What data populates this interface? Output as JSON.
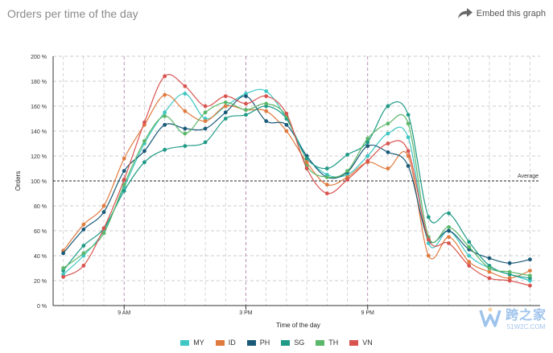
{
  "header": {
    "title": "Orders per time of the day",
    "embed_label": "Embed this graph",
    "embed_icon": "share-arrow-icon"
  },
  "chart_data": {
    "type": "line",
    "title": "Orders per time of the day",
    "xlabel": "Time of the day",
    "ylabel": "Orders",
    "x": [
      6,
      7,
      8,
      9,
      10,
      11,
      12,
      13,
      14,
      15,
      16,
      17,
      18,
      19,
      20,
      21,
      22,
      23,
      24,
      25,
      26,
      27,
      28,
      29
    ],
    "xlim": [
      5.5,
      29.5
    ],
    "x_ticks": [
      {
        "value": 9,
        "label": "9 AM"
      },
      {
        "value": 15,
        "label": "3 PM"
      },
      {
        "value": 21,
        "label": "9 PM"
      }
    ],
    "ylim": [
      0,
      200
    ],
    "y_ticks": [
      0,
      20,
      40,
      60,
      80,
      100,
      120,
      140,
      160,
      180,
      200
    ],
    "y_tick_suffix": " %",
    "grid": true,
    "reference_line": {
      "value": 100,
      "label": "Average"
    },
    "series": [
      {
        "name": "MY",
        "color": "#3ec7c4",
        "values": [
          25,
          40,
          60,
          95,
          130,
          155,
          170,
          150,
          160,
          170,
          172,
          150,
          120,
          105,
          105,
          120,
          138,
          135,
          50,
          60,
          40,
          30,
          25,
          20
        ]
      },
      {
        "name": "ID",
        "color": "#e07b3f",
        "values": [
          44,
          65,
          80,
          118,
          145,
          169,
          156,
          148,
          160,
          157,
          156,
          140,
          115,
          97,
          103,
          115,
          110,
          120,
          40,
          55,
          35,
          27,
          22,
          28
        ]
      },
      {
        "name": "PH",
        "color": "#1a5a78",
        "values": [
          42,
          61,
          75,
          108,
          124,
          145,
          142,
          142,
          155,
          168,
          148,
          145,
          120,
          103,
          107,
          128,
          123,
          112,
          53,
          60,
          45,
          38,
          34,
          37
        ]
      },
      {
        "name": "SG",
        "color": "#1f9a86",
        "values": [
          28,
          48,
          62,
          92,
          115,
          125,
          128,
          131,
          150,
          153,
          160,
          150,
          118,
          110,
          121,
          131,
          160,
          153,
          71,
          74,
          51,
          32,
          25,
          22
        ]
      },
      {
        "name": "TH",
        "color": "#5bb76a",
        "values": [
          30,
          42,
          58,
          97,
          132,
          152,
          138,
          155,
          163,
          157,
          162,
          152,
          112,
          103,
          108,
          134,
          146,
          146,
          55,
          63,
          47,
          30,
          27,
          24
        ]
      },
      {
        "name": "VN",
        "color": "#d9534f",
        "values": [
          23,
          32,
          62,
          101,
          147,
          184,
          176,
          160,
          168,
          162,
          168,
          154,
          110,
          90,
          101,
          116,
          130,
          124,
          53,
          50,
          32,
          22,
          20,
          16
        ]
      }
    ]
  },
  "watermark": {
    "cn": "跨之家",
    "en": "51W2C.COM",
    "icon": "w-logo-icon"
  }
}
